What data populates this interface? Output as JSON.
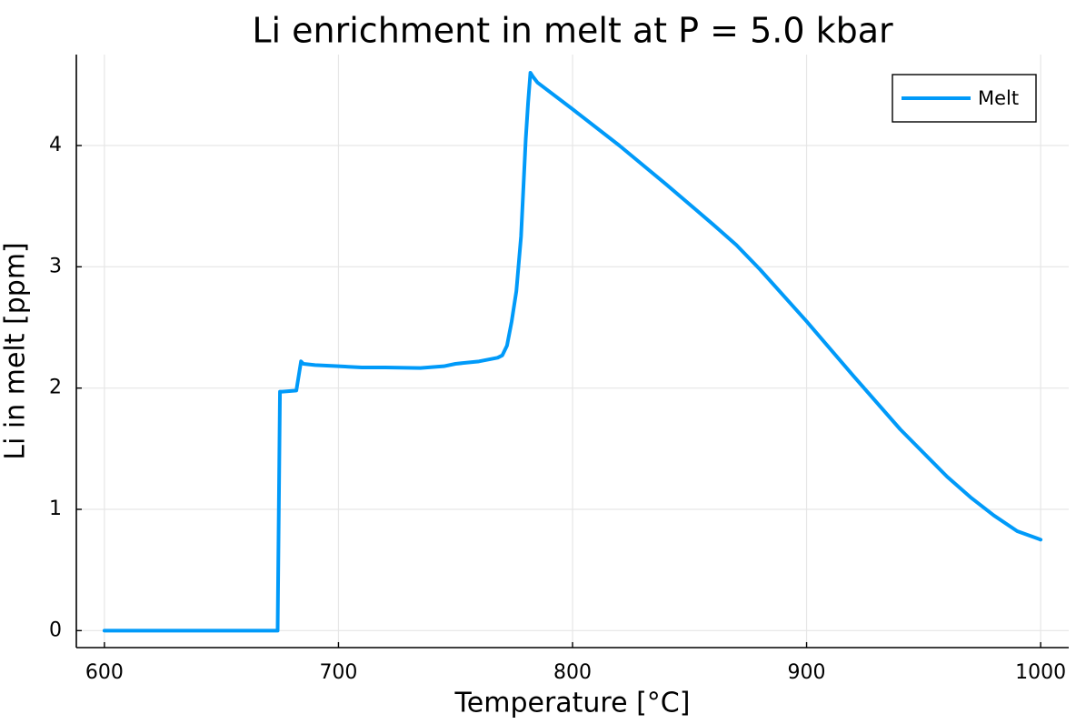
{
  "chart_data": {
    "type": "line",
    "title": "Li enrichment in melt at P = 5.0 kbar",
    "xlabel": "Temperature [°C]",
    "ylabel": "Li in melt [ppm]",
    "xlim": [
      588,
      1012
    ],
    "ylim": [
      -0.14,
      4.75
    ],
    "xticks": [
      600,
      700,
      800,
      900,
      1000
    ],
    "yticks": [
      0,
      1,
      2,
      3,
      4
    ],
    "grid": true,
    "legend_position": "top-right",
    "colors": {
      "series": "#009af9",
      "grid": "#e6e6e6",
      "axis": "#000000"
    },
    "series": [
      {
        "name": "Melt",
        "x": [
          600,
          620,
          640,
          660,
          674,
          675,
          676,
          682,
          684,
          685,
          690,
          700,
          710,
          720,
          735,
          745,
          750,
          760,
          768,
          770,
          772,
          774,
          776,
          778,
          779,
          780,
          781,
          782,
          783,
          785,
          800,
          820,
          840,
          860,
          870,
          880,
          900,
          920,
          940,
          960,
          970,
          980,
          990,
          1000
        ],
        "y": [
          0,
          0,
          0,
          0,
          0,
          1.97,
          1.97,
          1.98,
          2.22,
          2.2,
          2.19,
          2.18,
          2.17,
          2.17,
          2.165,
          2.18,
          2.2,
          2.22,
          2.25,
          2.27,
          2.35,
          2.55,
          2.8,
          3.25,
          3.65,
          4.05,
          4.35,
          4.6,
          4.57,
          4.52,
          4.3,
          4.0,
          3.68,
          3.35,
          3.18,
          2.98,
          2.55,
          2.1,
          1.66,
          1.27,
          1.1,
          0.95,
          0.82,
          0.75
        ]
      }
    ]
  }
}
